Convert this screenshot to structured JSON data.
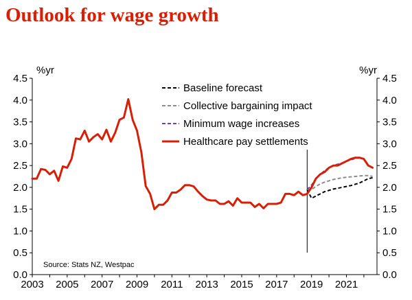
{
  "page": {
    "title": "Outlook for wage growth"
  },
  "chart_data": {
    "type": "line",
    "title": "Outlook for wage growth",
    "source": "Stats NZ, Westpac",
    "y_unit_left": "%yr",
    "y_unit_right": "%yr",
    "ylim": [
      0,
      4.5
    ],
    "y_ticks": [
      0.0,
      0.5,
      1.0,
      1.5,
      2.0,
      2.5,
      3.0,
      3.5,
      4.0,
      4.5
    ],
    "y_tick_labels": [
      "0.0",
      "0.5",
      "1.0",
      "1.5",
      "2.0",
      "2.5",
      "3.0",
      "3.5",
      "4.0",
      "4.5"
    ],
    "xlim": [
      2003.0,
      2022.75
    ],
    "x_ticks": [
      2003,
      2005,
      2007,
      2009,
      2011,
      2013,
      2015,
      2017,
      2019,
      2021
    ],
    "x_tick_labels": [
      "2003",
      "2005",
      "2007",
      "2009",
      "2011",
      "2013",
      "2015",
      "2017",
      "2019",
      "2021"
    ],
    "forecast_start": 2018.75,
    "grid": false,
    "legend_position": "top-center",
    "series": [
      {
        "name": "Baseline forecast",
        "color": "#000000",
        "style": "dashed",
        "x": [
          2018.75,
          2019.0,
          2019.25,
          2019.5,
          2019.75,
          2020.0,
          2020.25,
          2020.5,
          2020.75,
          2021.0,
          2021.25,
          2021.5,
          2021.75,
          2022.0,
          2022.25,
          2022.5
        ],
        "y": [
          1.95,
          1.75,
          1.8,
          1.85,
          1.9,
          1.93,
          1.96,
          1.98,
          2.0,
          2.02,
          2.04,
          2.07,
          2.1,
          2.15,
          2.2,
          2.22
        ]
      },
      {
        "name": "Collective bargaining impact",
        "color": "#8c8c8c",
        "style": "dashed",
        "x": [
          2018.75,
          2019.0,
          2019.25,
          2019.5,
          2019.75,
          2020.0,
          2020.25,
          2020.5,
          2020.75,
          2021.0,
          2021.25,
          2021.5,
          2021.75,
          2022.0,
          2022.25,
          2022.5
        ],
        "y": [
          1.95,
          1.95,
          2.02,
          2.08,
          2.12,
          2.15,
          2.18,
          2.2,
          2.22,
          2.23,
          2.24,
          2.25,
          2.26,
          2.27,
          2.27,
          2.25
        ]
      },
      {
        "name": "Minimum wage increases",
        "color": "#6a3fb5",
        "style": "dashed",
        "x": [
          2018.75,
          2019.0,
          2019.25,
          2019.5,
          2019.75,
          2020.0,
          2020.25,
          2020.5,
          2020.75,
          2021.0,
          2021.25,
          2021.5
        ],
        "y": [
          1.95,
          2.05,
          2.2,
          2.3,
          2.38,
          2.45,
          2.5,
          2.53,
          2.55,
          2.6,
          2.63,
          2.66
        ]
      },
      {
        "name": "Healthcare pay settlements",
        "color": "#d81e05",
        "style": "solid",
        "x": [
          2003.0,
          2003.25,
          2003.5,
          2003.75,
          2004.0,
          2004.25,
          2004.5,
          2004.75,
          2005.0,
          2005.25,
          2005.5,
          2005.75,
          2006.0,
          2006.25,
          2006.5,
          2006.75,
          2007.0,
          2007.25,
          2007.5,
          2007.75,
          2008.0,
          2008.25,
          2008.5,
          2008.75,
          2009.0,
          2009.25,
          2009.5,
          2009.75,
          2010.0,
          2010.25,
          2010.5,
          2010.75,
          2011.0,
          2011.25,
          2011.5,
          2011.75,
          2012.0,
          2012.25,
          2012.5,
          2012.75,
          2013.0,
          2013.25,
          2013.5,
          2013.75,
          2014.0,
          2014.25,
          2014.5,
          2014.75,
          2015.0,
          2015.25,
          2015.5,
          2015.75,
          2016.0,
          2016.25,
          2016.5,
          2016.75,
          2017.0,
          2017.25,
          2017.5,
          2017.75,
          2018.0,
          2018.25,
          2018.5,
          2018.75,
          2019.0,
          2019.25,
          2019.5,
          2019.75,
          2020.0,
          2020.25,
          2020.5,
          2020.75,
          2021.0,
          2021.25,
          2021.5,
          2021.75,
          2022.0,
          2022.25,
          2022.5
        ],
        "y": [
          2.2,
          2.2,
          2.42,
          2.4,
          2.3,
          2.38,
          2.15,
          2.48,
          2.45,
          2.65,
          3.12,
          3.1,
          3.3,
          3.05,
          3.15,
          3.22,
          3.1,
          3.32,
          3.05,
          3.25,
          3.55,
          3.6,
          4.02,
          3.55,
          3.3,
          2.8,
          2.03,
          1.85,
          1.5,
          1.6,
          1.6,
          1.7,
          1.88,
          1.88,
          1.95,
          2.05,
          2.05,
          2.02,
          1.9,
          1.8,
          1.72,
          1.7,
          1.7,
          1.62,
          1.62,
          1.68,
          1.58,
          1.75,
          1.65,
          1.65,
          1.65,
          1.55,
          1.62,
          1.52,
          1.62,
          1.62,
          1.62,
          1.65,
          1.85,
          1.85,
          1.82,
          1.9,
          1.82,
          1.85,
          2.0,
          2.2,
          2.3,
          2.35,
          2.45,
          2.5,
          2.5,
          2.55,
          2.6,
          2.65,
          2.68,
          2.68,
          2.65,
          2.5,
          2.45
        ]
      }
    ]
  }
}
